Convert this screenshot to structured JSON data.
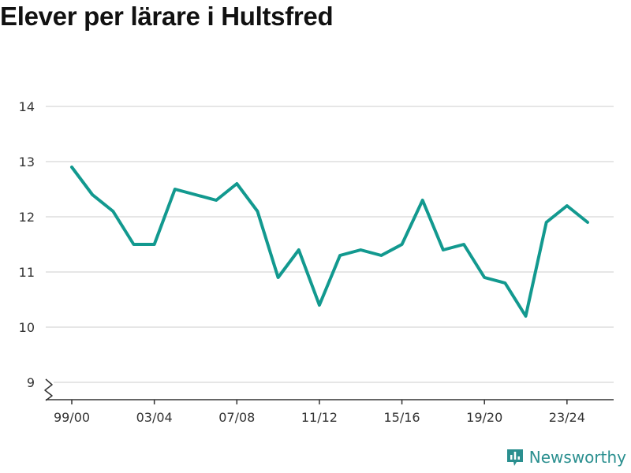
{
  "page_title": "Elever per lärare i Hultsfred",
  "brand": {
    "name": "Newsworthy",
    "icon": "newsworthy-logo-icon",
    "color": "#2a8f8f"
  },
  "colors": {
    "line": "#12998f",
    "grid": "#dddddd",
    "axis": "#333333"
  },
  "chart_data": {
    "type": "line",
    "title": "Elever per lärare i Hultsfred",
    "xlabel": "",
    "ylabel": "",
    "ylim": [
      9,
      14
    ],
    "yticks": [
      9,
      10,
      11,
      12,
      13,
      14
    ],
    "y_axis_break": true,
    "grid": true,
    "x": [
      "99/00",
      "00/01",
      "01/02",
      "02/03",
      "03/04",
      "04/05",
      "05/06",
      "06/07",
      "07/08",
      "08/09",
      "09/10",
      "10/11",
      "11/12",
      "12/13",
      "13/14",
      "14/15",
      "15/16",
      "16/17",
      "17/18",
      "18/19",
      "19/20",
      "20/21",
      "21/22",
      "22/23",
      "23/24",
      "24/25"
    ],
    "xticks": [
      "99/00",
      "03/04",
      "07/08",
      "11/12",
      "15/16",
      "19/20",
      "23/24"
    ],
    "series": [
      {
        "values": [
          12.9,
          12.4,
          12.1,
          11.5,
          11.5,
          12.5,
          12.4,
          12.3,
          12.6,
          12.1,
          10.9,
          11.4,
          10.4,
          11.3,
          11.4,
          11.3,
          11.5,
          12.3,
          11.4,
          11.5,
          10.9,
          10.8,
          10.2,
          11.9,
          12.2,
          11.9
        ]
      }
    ]
  }
}
